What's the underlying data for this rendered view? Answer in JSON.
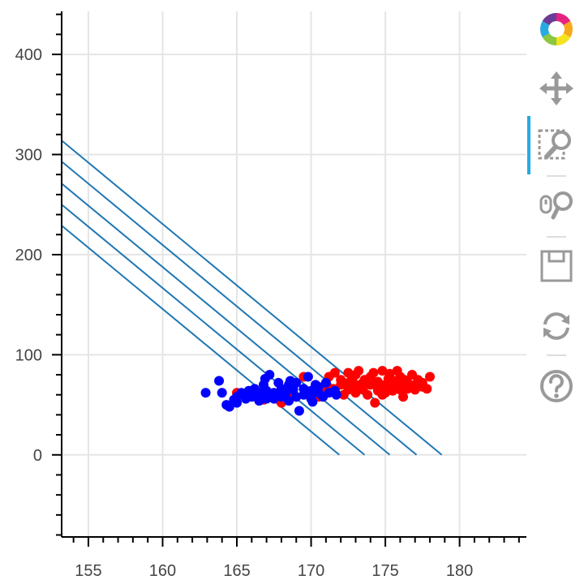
{
  "chart_data": {
    "type": "scatter",
    "title": "",
    "xlabel": "",
    "ylabel": "",
    "xlim": [
      153.2,
      184.5
    ],
    "ylim": [
      -82,
      443
    ],
    "grid": true,
    "x_ticks": [
      155,
      160,
      165,
      170,
      175,
      180
    ],
    "y_ticks": [
      0,
      100,
      200,
      300,
      400
    ],
    "colors": {
      "red": "#ff0000",
      "blue": "#0000ff",
      "line": "#1f77b4",
      "grid": "#e5e5e5",
      "axis": "#000000"
    },
    "series": [
      {
        "color": "red",
        "points": [
          [
            165.0,
            62
          ],
          [
            166.0,
            60
          ],
          [
            166.8,
            55
          ],
          [
            167.5,
            58
          ],
          [
            168.0,
            52
          ],
          [
            168.5,
            60
          ],
          [
            168.5,
            55
          ],
          [
            169.0,
            58
          ],
          [
            169.5,
            78
          ],
          [
            170.0,
            63
          ],
          [
            170.5,
            58
          ],
          [
            171.0,
            62
          ],
          [
            171.0,
            70
          ],
          [
            171.2,
            78
          ],
          [
            171.5,
            66
          ],
          [
            171.6,
            82
          ],
          [
            172.0,
            70
          ],
          [
            172.0,
            75
          ],
          [
            172.2,
            60
          ],
          [
            172.5,
            65
          ],
          [
            172.5,
            72
          ],
          [
            172.5,
            82
          ],
          [
            172.8,
            78
          ],
          [
            173.0,
            68
          ],
          [
            173.0,
            62
          ],
          [
            173.0,
            80
          ],
          [
            173.2,
            84
          ],
          [
            173.5,
            72
          ],
          [
            173.5,
            65
          ],
          [
            173.6,
            75
          ],
          [
            173.8,
            60
          ],
          [
            174.0,
            70
          ],
          [
            174.0,
            78
          ],
          [
            174.2,
            82
          ],
          [
            174.3,
            52
          ],
          [
            174.5,
            66
          ],
          [
            174.5,
            73
          ],
          [
            174.5,
            64
          ],
          [
            174.8,
            84
          ],
          [
            175.0,
            70
          ],
          [
            175.0,
            62
          ],
          [
            175.2,
            76
          ],
          [
            175.3,
            81
          ],
          [
            175.5,
            68
          ],
          [
            175.5,
            64
          ],
          [
            175.6,
            74
          ],
          [
            175.8,
            84
          ],
          [
            176.0,
            70
          ],
          [
            176.0,
            65
          ],
          [
            176.0,
            78
          ],
          [
            176.2,
            58
          ],
          [
            176.3,
            75
          ],
          [
            176.5,
            72
          ],
          [
            176.5,
            66
          ],
          [
            176.8,
            80
          ],
          [
            177.0,
            70
          ],
          [
            177.0,
            65
          ],
          [
            177.2,
            75
          ],
          [
            177.5,
            68
          ],
          [
            177.5,
            72
          ],
          [
            178.0,
            78
          ],
          [
            177.8,
            66
          ],
          [
            172.8,
            73
          ],
          [
            174.8,
            60
          ],
          [
            173.3,
            70
          ],
          [
            175.7,
            72
          ]
        ]
      },
      {
        "color": "blue",
        "points": [
          [
            162.9,
            62
          ],
          [
            163.8,
            74
          ],
          [
            164.0,
            62
          ],
          [
            164.3,
            50
          ],
          [
            164.5,
            48
          ],
          [
            164.8,
            55
          ],
          [
            165.0,
            52
          ],
          [
            165.0,
            58
          ],
          [
            165.3,
            62
          ],
          [
            165.6,
            56
          ],
          [
            165.8,
            64
          ],
          [
            166.0,
            58
          ],
          [
            166.2,
            66
          ],
          [
            166.5,
            54
          ],
          [
            166.5,
            62
          ],
          [
            166.8,
            70
          ],
          [
            167.0,
            56
          ],
          [
            167.0,
            64
          ],
          [
            167.2,
            80
          ],
          [
            167.5,
            62
          ],
          [
            167.5,
            56
          ],
          [
            167.8,
            72
          ],
          [
            168.0,
            66
          ],
          [
            168.0,
            58
          ],
          [
            168.3,
            62
          ],
          [
            168.5,
            54
          ],
          [
            168.5,
            70
          ],
          [
            168.8,
            65
          ],
          [
            169.0,
            58
          ],
          [
            169.0,
            72
          ],
          [
            169.2,
            44
          ],
          [
            169.5,
            60
          ],
          [
            169.5,
            66
          ],
          [
            169.8,
            78
          ],
          [
            170.0,
            56
          ],
          [
            170.0,
            64
          ],
          [
            170.3,
            70
          ],
          [
            170.5,
            62
          ],
          [
            170.5,
            68
          ],
          [
            170.8,
            58
          ],
          [
            171.0,
            72
          ],
          [
            171.2,
            62
          ],
          [
            171.6,
            64
          ],
          [
            171.7,
            60
          ],
          [
            166.9,
            76
          ],
          [
            168.6,
            74
          ],
          [
            165.9,
            60
          ],
          [
            170.1,
            53
          ]
        ]
      }
    ],
    "lines": [
      {
        "x": [
          153.2,
          171.9
        ],
        "y": [
          229,
          0
        ]
      },
      {
        "x": [
          153.2,
          173.6
        ],
        "y": [
          250,
          0
        ]
      },
      {
        "x": [
          153.2,
          175.3
        ],
        "y": [
          271,
          0
        ]
      },
      {
        "x": [
          153.2,
          177.1
        ],
        "y": [
          293,
          0
        ]
      },
      {
        "x": [
          153.2,
          178.8
        ],
        "y": [
          314,
          0
        ]
      }
    ]
  },
  "toolbar": {
    "tools": [
      {
        "name": "bokeh-logo",
        "icon": "bokeh-logo-icon",
        "active": false
      },
      {
        "name": "pan",
        "icon": "pan-icon",
        "active": false
      },
      {
        "name": "box-zoom",
        "icon": "box-zoom-icon",
        "active": true
      },
      {
        "name": "wheel-zoom",
        "icon": "wheel-zoom-icon",
        "active": false
      },
      {
        "name": "save",
        "icon": "save-icon",
        "active": false
      },
      {
        "name": "reset",
        "icon": "reset-icon",
        "active": false
      },
      {
        "name": "help",
        "icon": "help-icon",
        "active": false
      }
    ]
  }
}
